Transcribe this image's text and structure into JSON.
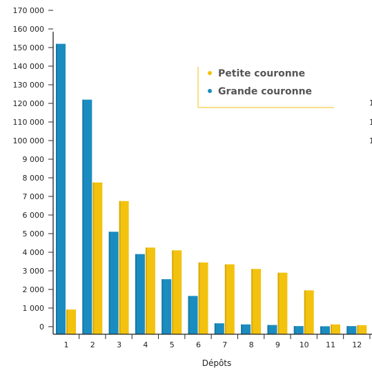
{
  "chart_data": {
    "type": "bar",
    "xlabel": "Dépôts",
    "ylabel": "",
    "categories": [
      "1",
      "2",
      "3",
      "4",
      "5",
      "6",
      "7",
      "8",
      "9",
      "10",
      "11",
      "12"
    ],
    "y_tick_labels": [
      "0",
      "1 000",
      "2 000",
      "3 000",
      "4 000",
      "5 000",
      "6 000",
      "7 000",
      "8 000",
      "9 000",
      "100 000",
      "110 000",
      "120 000",
      "130 000",
      "140 000",
      "150 000",
      "160 000",
      "170 000"
    ],
    "series": [
      {
        "name": "Grande couronne",
        "color": "#1b8cc0",
        "values": [
          152000,
          122000,
          5100,
          3900,
          2550,
          1650,
          180,
          120,
          90,
          30,
          20,
          30
        ]
      },
      {
        "name": "Petite couronne",
        "color": "#f2c20f",
        "values": [
          9200,
          7750,
          6750,
          4250,
          4100,
          3450,
          3350,
          3100,
          2900,
          1950,
          120,
          80
        ]
      }
    ],
    "legend": {
      "position": "top-right",
      "items": [
        {
          "label": "Petite couronne",
          "color": "#f2c20f"
        },
        {
          "label": "Grande couronne",
          "color": "#1b8cc0"
        }
      ]
    },
    "grid": false,
    "clipped_edge_text": [
      "1",
      "1",
      "1"
    ]
  }
}
